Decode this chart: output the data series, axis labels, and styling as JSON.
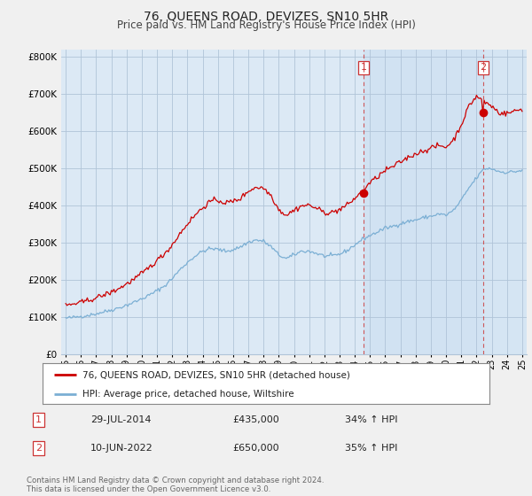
{
  "title": "76, QUEENS ROAD, DEVIZES, SN10 5HR",
  "subtitle": "Price paid vs. HM Land Registry's House Price Index (HPI)",
  "red_line_color": "#cc0000",
  "blue_line_color": "#7bafd4",
  "vline_color": "#cc3333",
  "marker_color": "#cc0000",
  "background_color": "#f0f0f0",
  "plot_bg_color": "#dce9f5",
  "shade_color": "#c8ddf0",
  "grid_color": "#b0c4d8",
  "legend_label_red": "76, QUEENS ROAD, DEVIZES, SN10 5HR (detached house)",
  "legend_label_blue": "HPI: Average price, detached house, Wiltshire",
  "transaction1_label": "1",
  "transaction1_date": "29-JUL-2014",
  "transaction1_price": "£435,000",
  "transaction1_hpi": "34% ↑ HPI",
  "transaction1_x": 2014.58,
  "transaction1_y": 435000,
  "transaction2_label": "2",
  "transaction2_date": "10-JUN-2022",
  "transaction2_price": "£650,000",
  "transaction2_hpi": "35% ↑ HPI",
  "transaction2_x": 2022.44,
  "transaction2_y": 650000,
  "footer": "Contains HM Land Registry data © Crown copyright and database right 2024.\nThis data is licensed under the Open Government Licence v3.0.",
  "ylim": [
    0,
    820000
  ],
  "xlim_left": 1994.7,
  "xlim_right": 2025.3,
  "yticks": [
    0,
    100000,
    200000,
    300000,
    400000,
    500000,
    600000,
    700000,
    800000
  ],
  "ytick_labels": [
    "£0",
    "£100K",
    "£200K",
    "£300K",
    "£400K",
    "£500K",
    "£600K",
    "£700K",
    "£800K"
  ]
}
